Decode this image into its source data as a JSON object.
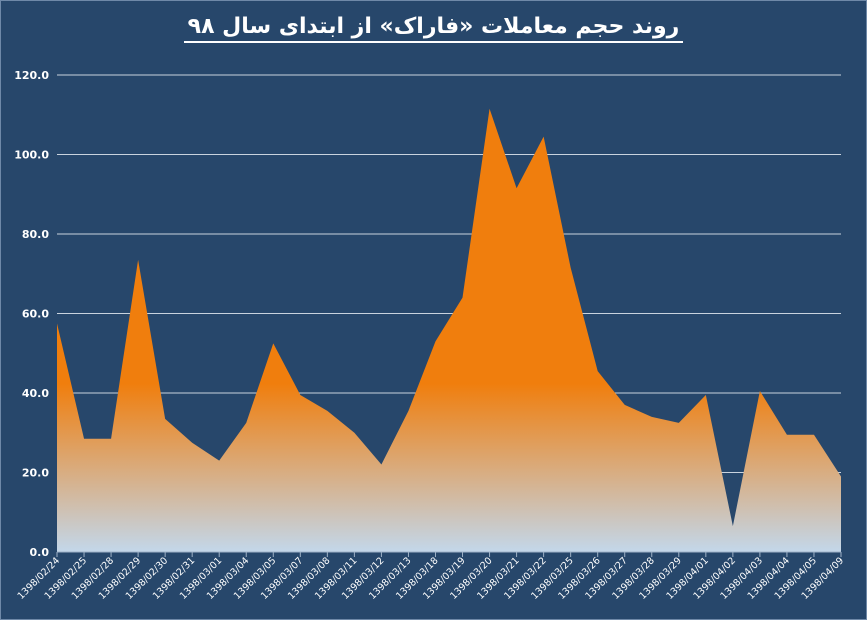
{
  "chart_data": {
    "type": "area",
    "title": "روند حجم معاملات «فاراک» از ابتدای سال ۹۸",
    "xlabel": "",
    "ylabel": "",
    "ylim": [
      0,
      120
    ],
    "yticks": [
      "0.0",
      "20.0",
      "40.0",
      "60.0",
      "80.0",
      "100.0",
      "120.0"
    ],
    "grid": true,
    "colors": {
      "background": "#27476b",
      "fill_top": "#f07e0d",
      "fill_bottom": "#c3d7ea",
      "grid": "#c9d3de"
    },
    "categories": [
      "1398/02/24",
      "1398/02/25",
      "1398/02/28",
      "1398/02/29",
      "1398/02/30",
      "1398/02/31",
      "1398/03/01",
      "1398/03/04",
      "1398/03/05",
      "1398/03/07",
      "1398/03/08",
      "1398/03/11",
      "1398/03/12",
      "1398/03/13",
      "1398/03/18",
      "1398/03/19",
      "1398/03/20",
      "1398/03/21",
      "1398/03/22",
      "1398/03/25",
      "1398/03/26",
      "1398/03/27",
      "1398/03/28",
      "1398/03/29",
      "1398/04/01",
      "1398/04/02",
      "1398/04/03",
      "1398/04/04",
      "1398/04/05",
      "1398/04/09"
    ],
    "values": [
      57.5,
      28.5,
      28.5,
      73.5,
      33.5,
      27.5,
      23.0,
      32.5,
      52.5,
      39.5,
      35.5,
      30.0,
      22.0,
      35.5,
      53.0,
      64.0,
      111.5,
      91.5,
      104.5,
      71.5,
      45.5,
      37.0,
      34.0,
      32.5,
      39.5,
      6.5,
      40.5,
      29.5,
      29.5,
      19.0
    ]
  }
}
